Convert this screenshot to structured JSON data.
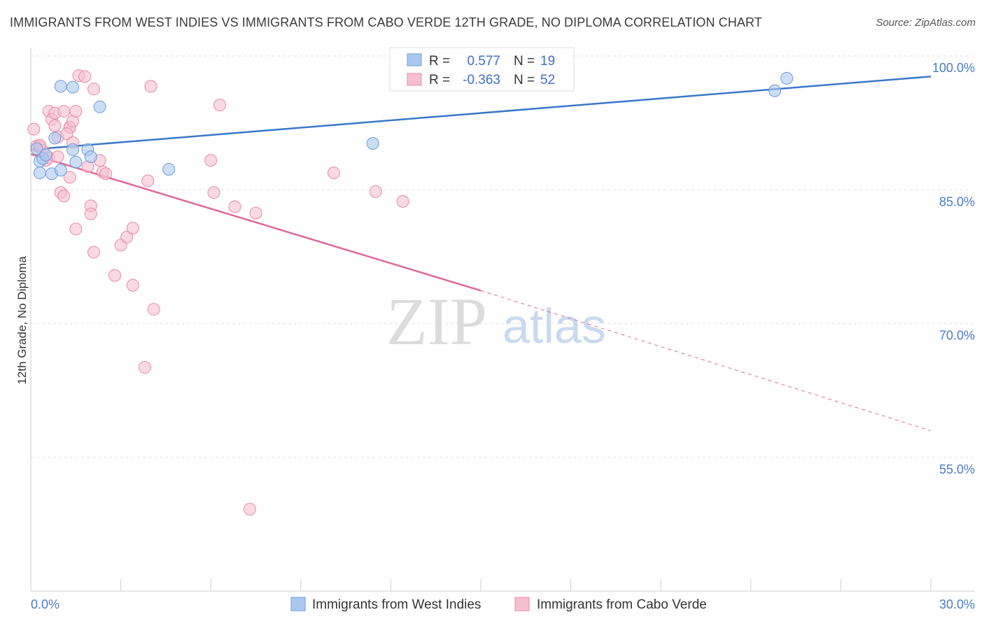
{
  "title": "IMMIGRANTS FROM WEST INDIES VS IMMIGRANTS FROM CABO VERDE 12TH GRADE, NO DIPLOMA CORRELATION CHART",
  "source": "Source: ZipAtlas.com",
  "watermark": {
    "zip": "ZIP",
    "atlas": "atlas"
  },
  "colors": {
    "west_indies_fill": "#aac8ef",
    "west_indies_stroke": "#6e9bd8",
    "west_indies_line": "#3a78c9",
    "cabo_verde_fill": "#f6bfd0",
    "cabo_verde_stroke": "#e98aa8",
    "cabo_verde_line": "#e0689a",
    "grid": "#e3e3e3",
    "tick_label": "#4a7cc4"
  },
  "stats": {
    "r_label": "R =",
    "n_label": "N =",
    "west_indies": {
      "r": "0.577",
      "n": "19"
    },
    "cabo_verde": {
      "r": "-0.363",
      "n": "52"
    }
  },
  "chart_data": {
    "type": "scatter",
    "title": "IMMIGRANTS FROM WEST INDIES VS IMMIGRANTS FROM CABO VERDE 12TH GRADE, NO DIPLOMA CORRELATION CHART",
    "xlabel": "",
    "ylabel": "12th Grade, No Diploma",
    "xlim": [
      0,
      30
    ],
    "ylim": [
      40,
      103
    ],
    "x_tick_labels": [
      {
        "value": 0,
        "label": "0.0%"
      },
      {
        "value": 30,
        "label": "30.0%"
      }
    ],
    "y_tick_labels": [
      {
        "value": 100,
        "label": "100.0%"
      },
      {
        "value": 85,
        "label": "85.0%"
      },
      {
        "value": 70,
        "label": "70.0%"
      },
      {
        "value": 55,
        "label": "55.0%"
      }
    ],
    "grid": true,
    "legend_position": "bottom-center",
    "series": [
      {
        "name": "Immigrants from West Indies",
        "points": [
          [
            0.2,
            89.6
          ],
          [
            0.3,
            88.2
          ],
          [
            0.4,
            88.5
          ],
          [
            0.5,
            88.9
          ],
          [
            0.3,
            86.9
          ],
          [
            0.7,
            86.8
          ],
          [
            0.8,
            90.8
          ],
          [
            1.0,
            87.2
          ],
          [
            1.0,
            96.6
          ],
          [
            1.4,
            89.5
          ],
          [
            1.4,
            96.5
          ],
          [
            1.5,
            88.1
          ],
          [
            1.9,
            89.5
          ],
          [
            2.0,
            88.7
          ],
          [
            2.3,
            94.3
          ],
          [
            4.6,
            87.3
          ],
          [
            11.4,
            90.2
          ],
          [
            24.8,
            96.1
          ],
          [
            25.2,
            97.5
          ]
        ],
        "trend": {
          "x0": 0,
          "y0": 89.5,
          "x1": 30,
          "y1": 97.7
        }
      },
      {
        "name": "Immigrants from Cabo Verde",
        "points": [
          [
            0.1,
            91.8
          ],
          [
            0.2,
            89.9
          ],
          [
            0.3,
            89.8
          ],
          [
            0.4,
            89.4
          ],
          [
            0.5,
            88.3
          ],
          [
            0.6,
            93.8
          ],
          [
            0.6,
            88.6
          ],
          [
            0.7,
            92.9
          ],
          [
            0.8,
            92.2
          ],
          [
            0.9,
            90.9
          ],
          [
            0.8,
            93.6
          ],
          [
            0.9,
            88.7
          ],
          [
            1.1,
            93.8
          ],
          [
            1.0,
            84.7
          ],
          [
            1.1,
            84.3
          ],
          [
            1.3,
            86.4
          ],
          [
            1.3,
            92.0
          ],
          [
            1.3,
            92.0
          ],
          [
            1.4,
            92.7
          ],
          [
            1.4,
            90.3
          ],
          [
            1.5,
            93.8
          ],
          [
            1.5,
            80.6
          ],
          [
            1.6,
            97.8
          ],
          [
            1.8,
            97.7
          ],
          [
            1.9,
            87.6
          ],
          [
            2.0,
            83.2
          ],
          [
            2.0,
            82.3
          ],
          [
            2.1,
            78.0
          ],
          [
            2.1,
            96.3
          ],
          [
            2.3,
            88.3
          ],
          [
            2.4,
            87.0
          ],
          [
            2.5,
            86.8
          ],
          [
            2.8,
            75.4
          ],
          [
            3.0,
            78.8
          ],
          [
            3.2,
            79.7
          ],
          [
            3.4,
            80.7
          ],
          [
            3.4,
            74.3
          ],
          [
            3.8,
            65.1
          ],
          [
            3.9,
            86.0
          ],
          [
            4.0,
            96.6
          ],
          [
            4.1,
            71.6
          ],
          [
            6.0,
            88.3
          ],
          [
            6.1,
            84.7
          ],
          [
            6.3,
            94.5
          ],
          [
            6.8,
            83.1
          ],
          [
            7.3,
            49.2
          ],
          [
            7.5,
            82.4
          ],
          [
            10.1,
            86.9
          ],
          [
            11.5,
            84.8
          ],
          [
            12.4,
            83.7
          ],
          [
            0.3,
            90.0
          ],
          [
            1.2,
            91.3
          ]
        ],
        "trend": {
          "x0": 0,
          "y0": 89.0,
          "x1": 15.0,
          "y1": 73.7,
          "dash_x1": 30,
          "dash_y1": 58.0
        }
      }
    ]
  }
}
